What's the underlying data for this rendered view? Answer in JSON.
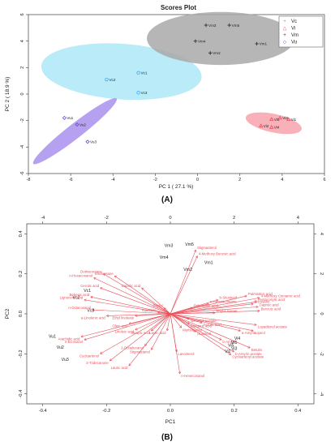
{
  "chart_data": [
    {
      "type": "scatter",
      "title": "Scores Plot",
      "xlabel": "PC 1 ( 27.1 %)",
      "ylabel": "PC 2 ( 18.9 %)",
      "xlim": [
        -8,
        6
      ],
      "ylim": [
        -6,
        6
      ],
      "xticks": [
        -8,
        -6,
        -4,
        -2,
        0,
        2,
        4,
        6
      ],
      "yticks": [
        -6,
        -4,
        -2,
        0,
        2,
        4,
        6
      ],
      "panel_label": "(A)",
      "legend": {
        "placement": "top-right",
        "entries": [
          {
            "symbol": "+",
            "label": "Vc",
            "color": "#3fa9f5"
          },
          {
            "symbol": "△",
            "label": "Vi",
            "color": "#e8505b"
          },
          {
            "symbol": "+",
            "label": "Vm",
            "color": "#333333"
          },
          {
            "symbol": "◇",
            "label": "Vu",
            "color": "#6a4cc9"
          }
        ]
      },
      "groups": [
        {
          "name": "Vc",
          "color": "#3fa9f5",
          "fill": "#aee8f7",
          "marker": "circle",
          "ellipse": {
            "cx": -3.6,
            "cy": 1.7,
            "rx": 3.8,
            "ry": 2.1,
            "angle": -4
          },
          "points": [
            {
              "x": -4.3,
              "y": 1.1,
              "label": "Vc2"
            },
            {
              "x": -2.8,
              "y": 1.6,
              "label": "Vc1"
            },
            {
              "x": -2.8,
              "y": 0.1,
              "label": "Vc3"
            }
          ]
        },
        {
          "name": "Vm",
          "color": "#333333",
          "fill": "#a9a9a9",
          "marker": "plus",
          "ellipse": {
            "cx": 1.1,
            "cy": 4.2,
            "rx": 3.5,
            "ry": 2.0,
            "angle": 0
          },
          "points": [
            {
              "x": 0.4,
              "y": 5.2,
              "label": "Vm3"
            },
            {
              "x": 1.5,
              "y": 5.2,
              "label": "Vm5"
            },
            {
              "x": -0.1,
              "y": 4.0,
              "label": "Vm4"
            },
            {
              "x": 0.6,
              "y": 3.1,
              "label": "Vm2"
            },
            {
              "x": 2.8,
              "y": 3.8,
              "label": "Vm1"
            }
          ]
        },
        {
          "name": "Vu",
          "color": "#6a4cc9",
          "fill": "#a890ec",
          "marker": "diamond",
          "ellipse": {
            "cx": -5.8,
            "cy": -2.8,
            "rx": 2.5,
            "ry": 0.55,
            "angle": 38
          },
          "points": [
            {
              "x": -6.3,
              "y": -1.8,
              "label": "Vu1"
            },
            {
              "x": -5.7,
              "y": -2.3,
              "label": "Vu2"
            },
            {
              "x": -5.2,
              "y": -3.6,
              "label": "Vu3"
            }
          ]
        },
        {
          "name": "Vi",
          "color": "#e8505b",
          "fill": "#f7a3ab",
          "marker": "triangle",
          "ellipse": {
            "cx": 3.6,
            "cy": -2.2,
            "rx": 1.35,
            "ry": 0.7,
            "angle": -12
          },
          "points": [
            {
              "x": 3.0,
              "y": -2.4,
              "label": "Vi2"
            },
            {
              "x": 3.5,
              "y": -1.9,
              "label": "Vi5"
            },
            {
              "x": 3.9,
              "y": -1.8,
              "label": "Vi3"
            },
            {
              "x": 4.3,
              "y": -1.9,
              "label": "Vi1"
            },
            {
              "x": 3.5,
              "y": -2.5,
              "label": "Vi4"
            }
          ]
        }
      ]
    },
    {
      "type": "scatter",
      "title": "",
      "xlabel": "PC1",
      "ylabel": "PC2",
      "xlim": [
        -0.45,
        0.45
      ],
      "ylim": [
        -0.45,
        0.45
      ],
      "xticks": [
        -0.4,
        -0.2,
        0.0,
        0.2,
        0.4
      ],
      "yticks": [
        -0.4,
        -0.2,
        0.0,
        0.2,
        0.4
      ],
      "secondary_axes": {
        "ticks": [
          -4,
          -2,
          0,
          2,
          4
        ],
        "range": [
          -4.5,
          4.5
        ]
      },
      "panel_label": "(B)",
      "sample_color": "#222222",
      "loading_color": "#e8505b",
      "samples": [
        {
          "x": -0.005,
          "y": 0.335,
          "label": "Vm3"
        },
        {
          "x": 0.06,
          "y": 0.34,
          "label": "Vm5"
        },
        {
          "x": -0.02,
          "y": 0.275,
          "label": "Vm4"
        },
        {
          "x": 0.055,
          "y": 0.215,
          "label": "Vm2"
        },
        {
          "x": 0.12,
          "y": 0.25,
          "label": "Vm1"
        },
        {
          "x": -0.26,
          "y": 0.11,
          "label": "Vc1"
        },
        {
          "x": -0.295,
          "y": 0.075,
          "label": "Vc2"
        },
        {
          "x": -0.25,
          "y": 0.01,
          "label": "Vc3"
        },
        {
          "x": -0.37,
          "y": -0.12,
          "label": "Vu1"
        },
        {
          "x": -0.345,
          "y": -0.175,
          "label": "Vu2"
        },
        {
          "x": -0.33,
          "y": -0.235,
          "label": "Vu3"
        },
        {
          "x": 0.2,
          "y": -0.15,
          "label": "Vi1"
        },
        {
          "x": 0.18,
          "y": -0.195,
          "label": "Vi2"
        },
        {
          "x": 0.2,
          "y": -0.18,
          "label": "Vi3"
        },
        {
          "x": 0.21,
          "y": -0.13,
          "label": "Vi4"
        },
        {
          "x": 0.19,
          "y": -0.165,
          "label": "Vi5"
        }
      ],
      "loadings": [
        {
          "x": 0.08,
          "y": 0.32,
          "label": "Stigmasterol"
        },
        {
          "x": 0.085,
          "y": 0.29,
          "label": "4-Methoxy Benzoic acid"
        },
        {
          "x": -0.175,
          "y": 0.19,
          "label": "Tetracosane"
        },
        {
          "x": -0.21,
          "y": 0.2,
          "label": "Dotriacontane"
        },
        {
          "x": -0.24,
          "y": 0.18,
          "label": "n-Hexacosanol"
        },
        {
          "x": -0.22,
          "y": 0.13,
          "label": "Cerotic acid"
        },
        {
          "x": -0.09,
          "y": 0.13,
          "label": "Caprilic acid"
        },
        {
          "x": -0.25,
          "y": 0.085,
          "label": "Behenic acid"
        },
        {
          "x": -0.27,
          "y": 0.07,
          "label": "Lignoceric acid"
        },
        {
          "x": -0.245,
          "y": 0.02,
          "label": "n-Octacosanol"
        },
        {
          "x": -0.2,
          "y": -0.01,
          "label": "a-Linolenic acid"
        },
        {
          "x": -0.11,
          "y": -0.01,
          "label": "Ethyl linoleate"
        },
        {
          "x": -0.02,
          "y": 0.03,
          "label": "Phytol"
        },
        {
          "x": -0.04,
          "y": 0.008,
          "label": "Squalene"
        },
        {
          "x": 0.15,
          "y": 0.07,
          "label": "b-Sitosterol"
        },
        {
          "x": 0.12,
          "y": 0.05,
          "label": "n-Hentriacontane"
        },
        {
          "x": 0.07,
          "y": 0.03,
          "label": "Palmitoleic acid"
        },
        {
          "x": 0.24,
          "y": 0.09,
          "label": "Palmitoleic acid"
        },
        {
          "x": 0.28,
          "y": 0.08,
          "label": "4-Methoxy Cinnamic acid"
        },
        {
          "x": 0.27,
          "y": 0.06,
          "label": "Pentacosylic acid"
        },
        {
          "x": 0.26,
          "y": 0.05,
          "label": "Tricosane"
        },
        {
          "x": 0.275,
          "y": 0.035,
          "label": "Caproic acid"
        },
        {
          "x": 0.28,
          "y": 0.015,
          "label": "Benzoic acid"
        },
        {
          "x": 0.14,
          "y": 0.005,
          "label": "Phytol isomer"
        },
        {
          "x": 0.06,
          "y": -0.025,
          "label": "Geraniol acetate"
        },
        {
          "x": 0.27,
          "y": -0.055,
          "label": "Lupadienol acetate"
        },
        {
          "x": 0.22,
          "y": -0.085,
          "label": "a-Amyrin"
        },
        {
          "x": 0.26,
          "y": -0.085,
          "label": "Lupeol"
        },
        {
          "x": 0.06,
          "y": -0.05,
          "label": "Margaric acid"
        },
        {
          "x": 0.1,
          "y": -0.045,
          "label": "Ferulic acid"
        },
        {
          "x": 0.035,
          "y": -0.07,
          "label": "Myristic acid"
        },
        {
          "x": -0.01,
          "y": -0.085,
          "label": "Lactic acid"
        },
        {
          "x": 0.08,
          "y": -0.09,
          "label": "Guaiacol"
        },
        {
          "x": -0.13,
          "y": -0.05,
          "label": "Oleic acid"
        },
        {
          "x": -0.11,
          "y": -0.08,
          "label": "Linoleic acid"
        },
        {
          "x": -0.06,
          "y": -0.085,
          "label": "Sinapic acid"
        },
        {
          "x": -0.28,
          "y": -0.115,
          "label": "Arachidic acid"
        },
        {
          "x": -0.27,
          "y": -0.13,
          "label": "n-Eicosanol"
        },
        {
          "x": -0.08,
          "y": -0.16,
          "label": "1-Octadecanol"
        },
        {
          "x": -0.06,
          "y": -0.18,
          "label": "Stigmastanol"
        },
        {
          "x": 0.02,
          "y": -0.19,
          "label": "Lanosterol"
        },
        {
          "x": 0.25,
          "y": -0.17,
          "label": "Betulin"
        },
        {
          "x": 0.16,
          "y": -0.13,
          "label": "b-Amyrin"
        },
        {
          "x": 0.2,
          "y": -0.19,
          "label": "b-Amyrin acetate"
        },
        {
          "x": 0.19,
          "y": -0.205,
          "label": "Cycloartenyl acetate"
        },
        {
          "x": -0.22,
          "y": -0.2,
          "label": "Cycloartenol"
        },
        {
          "x": -0.19,
          "y": -0.235,
          "label": "2-Tridecanone"
        },
        {
          "x": -0.13,
          "y": -0.26,
          "label": "Lauric acid"
        },
        {
          "x": 0.03,
          "y": -0.3,
          "label": "n-Henecosanol"
        }
      ]
    }
  ]
}
